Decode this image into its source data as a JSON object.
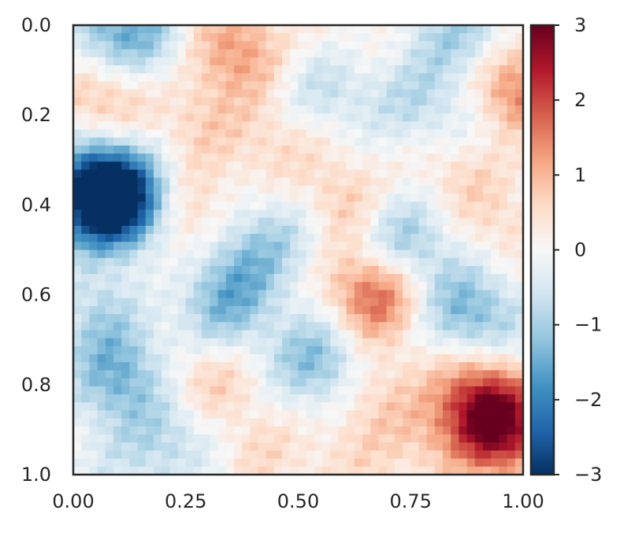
{
  "chart_data": {
    "type": "heatmap",
    "title": "",
    "xlabel": "",
    "ylabel": "",
    "xlim": [
      0,
      1
    ],
    "ylim": [
      0,
      1
    ],
    "y_inverted": true,
    "x_ticks": [
      "0.00",
      "0.25",
      "0.50",
      "0.75",
      "1.00"
    ],
    "y_ticks": [
      "0.0",
      "0.2",
      "0.4",
      "0.6",
      "0.8",
      "1.0"
    ],
    "colormap": "RdBu_r",
    "colorbar": {
      "vmin": -3,
      "vmax": 3,
      "ticks": [
        "3",
        "2",
        "1",
        "0",
        "−1",
        "−2",
        "−3"
      ]
    },
    "grid": false,
    "field_samples": [
      {
        "x": 0.08,
        "y": 0.01,
        "value": -1.2
      },
      {
        "x": 0.18,
        "y": 0.02,
        "value": -0.8
      },
      {
        "x": 0.38,
        "y": 0.07,
        "value": 0.9
      },
      {
        "x": 0.32,
        "y": 0.02,
        "value": 0.6
      },
      {
        "x": 0.6,
        "y": 0.05,
        "value": 0.4
      },
      {
        "x": 0.86,
        "y": 0.02,
        "value": -1.0
      },
      {
        "x": 0.98,
        "y": 0.15,
        "value": 1.7
      },
      {
        "x": 0.06,
        "y": 0.16,
        "value": 1.0
      },
      {
        "x": 0.56,
        "y": 0.13,
        "value": -0.9
      },
      {
        "x": 0.76,
        "y": 0.17,
        "value": -0.7
      },
      {
        "x": 0.9,
        "y": 0.22,
        "value": -0.6
      },
      {
        "x": 0.28,
        "y": 0.22,
        "value": 0.6
      },
      {
        "x": 0.45,
        "y": 0.28,
        "value": 0.5
      },
      {
        "x": 0.1,
        "y": 0.4,
        "value": -3.0
      },
      {
        "x": 0.05,
        "y": 0.36,
        "value": -2.4
      },
      {
        "x": 0.26,
        "y": 0.43,
        "value": 0.8
      },
      {
        "x": 0.38,
        "y": 0.52,
        "value": -1.0
      },
      {
        "x": 0.48,
        "y": 0.45,
        "value": -0.6
      },
      {
        "x": 0.6,
        "y": 0.4,
        "value": 0.9
      },
      {
        "x": 0.73,
        "y": 0.48,
        "value": -1.3
      },
      {
        "x": 0.86,
        "y": 0.32,
        "value": 0.7
      },
      {
        "x": 0.95,
        "y": 0.45,
        "value": 0.5
      },
      {
        "x": 0.67,
        "y": 0.6,
        "value": 1.9
      },
      {
        "x": 0.33,
        "y": 0.63,
        "value": -1.2
      },
      {
        "x": 0.87,
        "y": 0.63,
        "value": -1.3
      },
      {
        "x": 0.06,
        "y": 0.63,
        "value": -0.8
      },
      {
        "x": 0.55,
        "y": 0.75,
        "value": -1.5
      },
      {
        "x": 0.1,
        "y": 0.78,
        "value": -1.4
      },
      {
        "x": 0.3,
        "y": 0.79,
        "value": 0.8
      },
      {
        "x": 0.65,
        "y": 0.81,
        "value": 0.7
      },
      {
        "x": 0.95,
        "y": 0.9,
        "value": 2.5
      },
      {
        "x": 0.9,
        "y": 0.82,
        "value": 1.6
      },
      {
        "x": 0.78,
        "y": 0.92,
        "value": 0.5
      },
      {
        "x": 0.22,
        "y": 0.92,
        "value": -0.8
      },
      {
        "x": 0.42,
        "y": 0.95,
        "value": 0.5
      },
      {
        "x": 0.62,
        "y": 0.97,
        "value": 0.4
      },
      {
        "x": 0.15,
        "y": 0.55,
        "value": 0.3
      },
      {
        "x": 0.5,
        "y": 0.2,
        "value": 0.1
      },
      {
        "x": 0.95,
        "y": 0.7,
        "value": -0.4
      },
      {
        "x": 0.1,
        "y": 0.98,
        "value": -0.3
      }
    ]
  }
}
